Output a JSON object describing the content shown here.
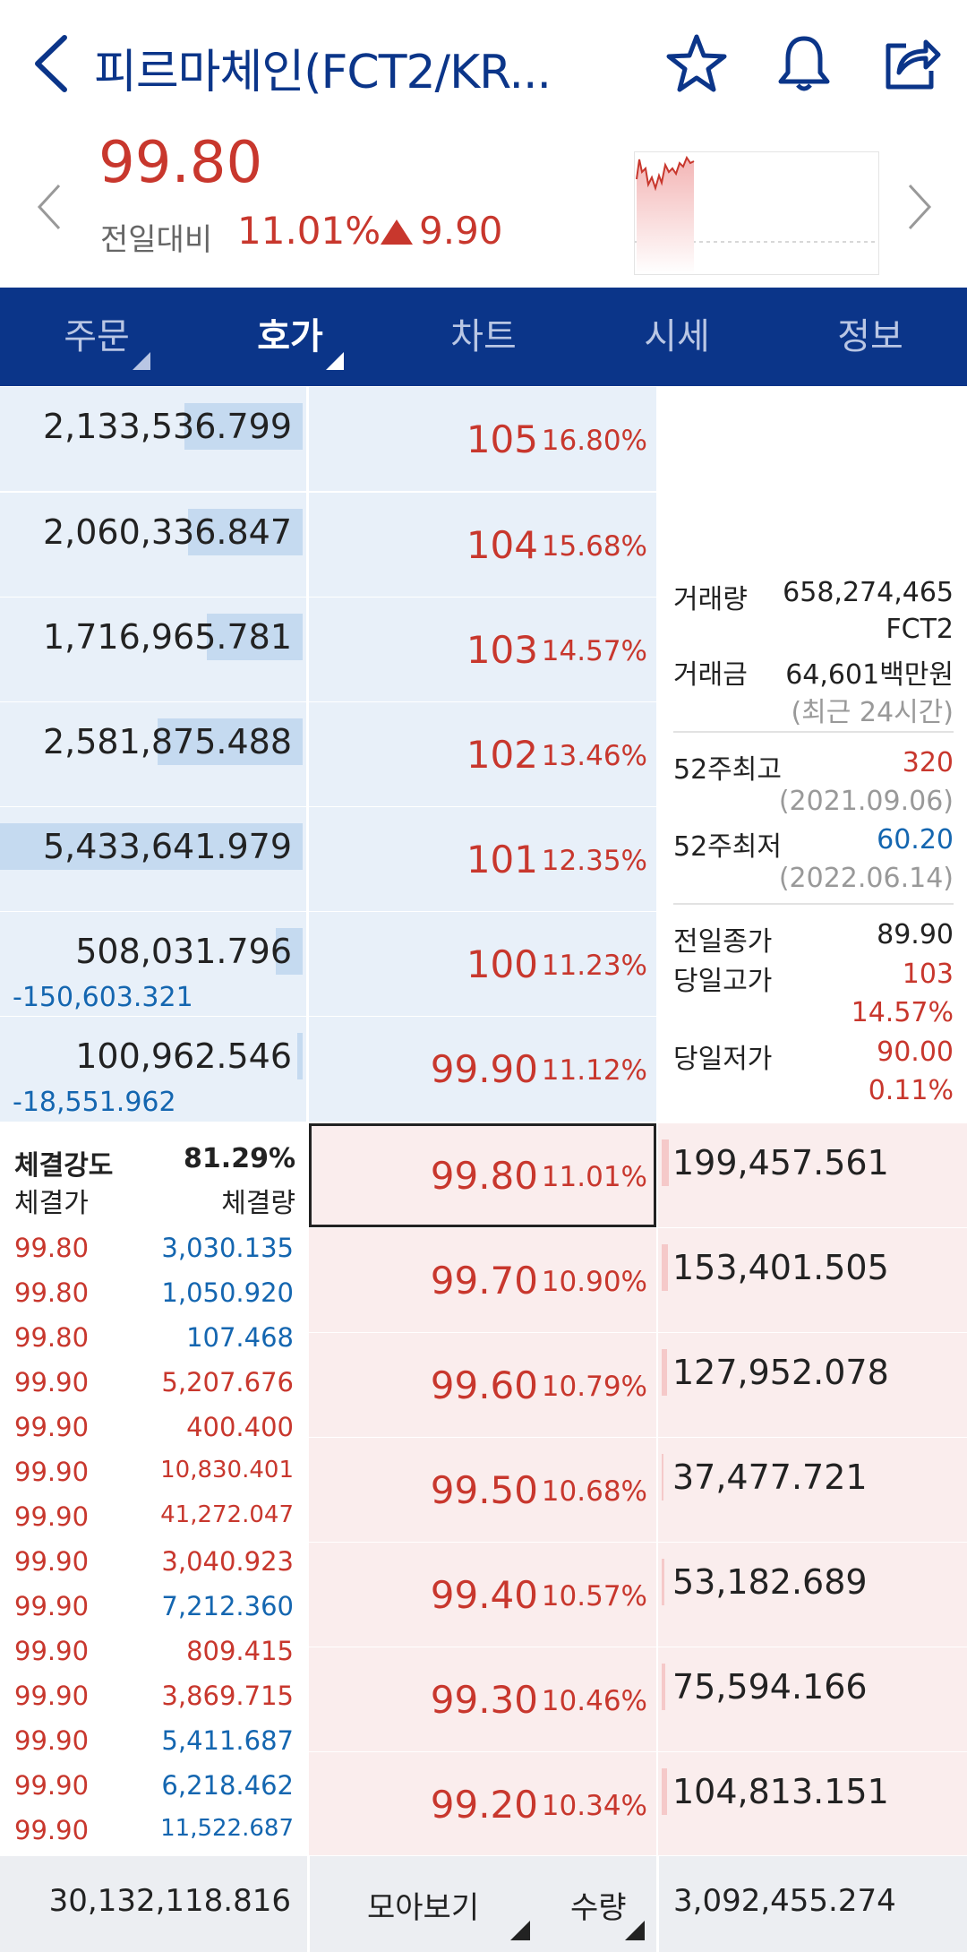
{
  "header": {
    "title": "피르마체인(FCT2/KR...",
    "icons": [
      "back-icon",
      "star-icon",
      "bell-icon",
      "share-icon"
    ]
  },
  "price": {
    "current": "99.80",
    "change_label": "전일대비",
    "change_rate": "11.01%",
    "change_amount": "9.90",
    "color": "#c8372d"
  },
  "tabs": [
    {
      "label": "주문",
      "active": false
    },
    {
      "label": "호가",
      "active": true
    },
    {
      "label": "차트",
      "active": false
    },
    {
      "label": "시세",
      "active": false
    },
    {
      "label": "정보",
      "active": false
    }
  ],
  "asks": [
    {
      "qty": "2,133,536.799",
      "price": "105",
      "rate": "16.80%",
      "change": ""
    },
    {
      "qty": "2,060,336.847",
      "price": "104",
      "rate": "15.68%",
      "change": ""
    },
    {
      "qty": "1,716,965.781",
      "price": "103",
      "rate": "14.57%",
      "change": ""
    },
    {
      "qty": "2,581,875.488",
      "price": "102",
      "rate": "13.46%",
      "change": ""
    },
    {
      "qty": "5,433,641.979",
      "price": "101",
      "rate": "12.35%",
      "change": ""
    },
    {
      "qty": "508,031.796",
      "price": "100",
      "rate": "11.23%",
      "change": "-150,603.321"
    },
    {
      "qty": "100,962.546",
      "price": "99.90",
      "rate": "11.12%",
      "change": "-18,551.962"
    }
  ],
  "bids": [
    {
      "qty": "199,457.561",
      "price": "99.80",
      "rate": "11.01%"
    },
    {
      "qty": "153,401.505",
      "price": "99.70",
      "rate": "10.90%"
    },
    {
      "qty": "127,952.078",
      "price": "99.60",
      "rate": "10.79%"
    },
    {
      "qty": "37,477.721",
      "price": "99.50",
      "rate": "10.68%"
    },
    {
      "qty": "53,182.689",
      "price": "99.40",
      "rate": "10.57%"
    },
    {
      "qty": "75,594.166",
      "price": "99.30",
      "rate": "10.46%"
    },
    {
      "qty": "104,813.151",
      "price": "99.20",
      "rate": "10.34%"
    }
  ],
  "info": {
    "volume_label": "거래량",
    "volume": "658,274,465",
    "volume_unit": "FCT2",
    "amount_label": "거래금",
    "amount": "64,601백만원",
    "period_note": "(최근 24시간)",
    "high52_label": "52주최고",
    "high52": "320",
    "high52_date": "(2021.09.06)",
    "low52_label": "52주최저",
    "low52": "60.20",
    "low52_date": "(2022.06.14)",
    "prev_close_label": "전일종가",
    "prev_close": "89.90",
    "day_high_label": "당일고가",
    "day_high": "103",
    "day_high_rate": "14.57%",
    "day_low_label": "당일저가",
    "day_low": "90.00",
    "day_low_rate": "0.11%"
  },
  "trades": {
    "strength_label": "체결강도",
    "strength": "81.29%",
    "price_header": "체결가",
    "qty_header": "체결량",
    "rows": [
      {
        "price": "99.80",
        "qty": "3,030.135",
        "side": "buy"
      },
      {
        "price": "99.80",
        "qty": "1,050.920",
        "side": "buy"
      },
      {
        "price": "99.80",
        "qty": "107.468",
        "side": "buy"
      },
      {
        "price": "99.90",
        "qty": "5,207.676",
        "side": "sell"
      },
      {
        "price": "99.90",
        "qty": "400.400",
        "side": "sell"
      },
      {
        "price": "99.90",
        "qty": "10,830.401",
        "side": "sell"
      },
      {
        "price": "99.90",
        "qty": "41,272.047",
        "side": "sell"
      },
      {
        "price": "99.90",
        "qty": "3,040.923",
        "side": "sell"
      },
      {
        "price": "99.90",
        "qty": "7,212.360",
        "side": "buy"
      },
      {
        "price": "99.90",
        "qty": "809.415",
        "side": "sell"
      },
      {
        "price": "99.90",
        "qty": "3,869.715",
        "side": "sell"
      },
      {
        "price": "99.90",
        "qty": "5,411.687",
        "side": "buy"
      },
      {
        "price": "99.90",
        "qty": "6,218.462",
        "side": "buy"
      },
      {
        "price": "99.90",
        "qty": "11,522.687",
        "side": "buy"
      }
    ]
  },
  "footer": {
    "total_ask": "30,132,118.816",
    "view_label": "모아보기",
    "unit_label": "수량",
    "total_bid": "3,092,455.274"
  },
  "colors": {
    "navy": "#0b3589",
    "up": "#c8372d",
    "down": "#1466b0",
    "ask_bg": "#e8f0f9",
    "bid_bg": "#faeded"
  }
}
